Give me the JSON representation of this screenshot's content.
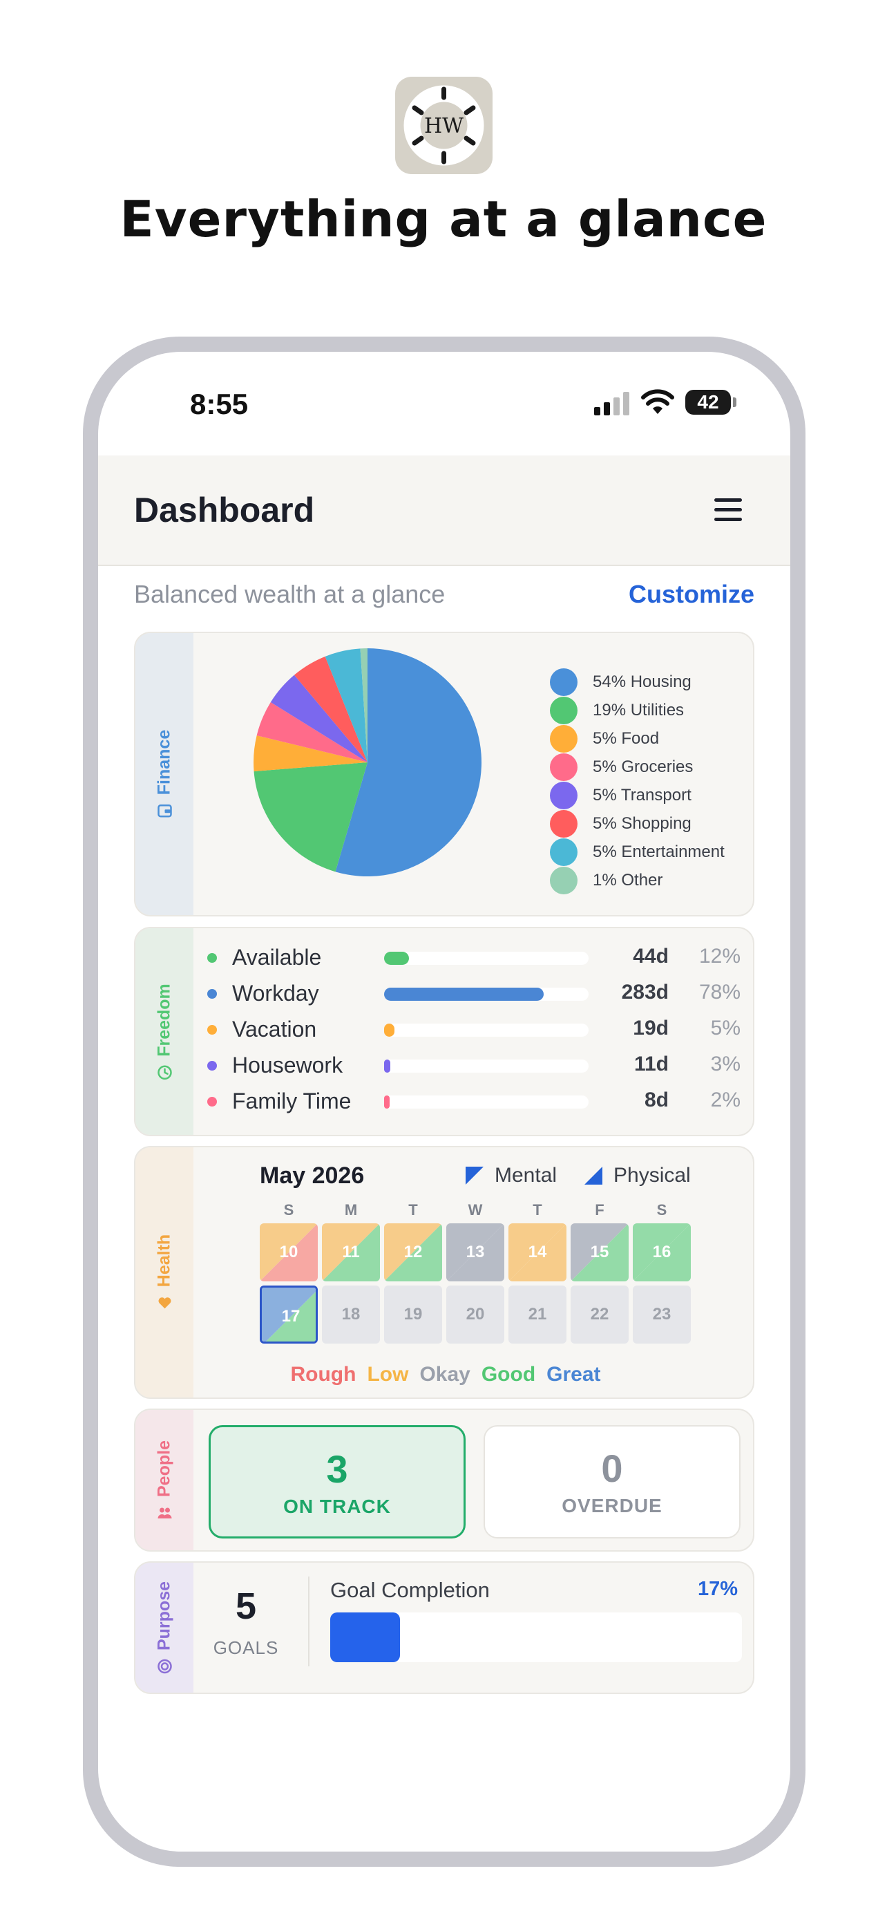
{
  "promo": {
    "headline": "Everything at a glance",
    "logo_text": "HW"
  },
  "status_bar": {
    "time": "8:55",
    "battery": "42"
  },
  "header": {
    "title": "Dashboard"
  },
  "intro": {
    "subtitle": "Balanced wealth at a glance",
    "customize_label": "Customize"
  },
  "finance": {
    "label": "Finance",
    "accent": "#4a90d9",
    "chart_data": {
      "type": "pie",
      "labels": [
        "Housing",
        "Utilities",
        "Food",
        "Groceries",
        "Transport",
        "Shopping",
        "Entertainment",
        "Other"
      ],
      "values": [
        54,
        19,
        5,
        5,
        5,
        5,
        5,
        1
      ],
      "colors": [
        "#4a90d9",
        "#52c773",
        "#ffae38",
        "#ff6b8a",
        "#7b68ee",
        "#ff5d5d",
        "#4bb8d6",
        "#96d0b3"
      ],
      "legend": [
        "54% Housing",
        "19% Utilities",
        "5% Food",
        "5% Groceries",
        "5% Transport",
        "5% Shopping",
        "5% Entertainment",
        "1% Other"
      ]
    }
  },
  "freedom": {
    "label": "Freedom",
    "accent": "#52c773",
    "rows": [
      {
        "label": "Available",
        "days": "44d",
        "pct": "12%",
        "value": 12,
        "color": "#52c773"
      },
      {
        "label": "Workday",
        "days": "283d",
        "pct": "78%",
        "value": 78,
        "color": "#4a86d4"
      },
      {
        "label": "Vacation",
        "days": "19d",
        "pct": "5%",
        "value": 5,
        "color": "#ffae38"
      },
      {
        "label": "Housework",
        "days": "11d",
        "pct": "3%",
        "value": 3,
        "color": "#7b68ee"
      },
      {
        "label": "Family Time",
        "days": "8d",
        "pct": "2%",
        "value": 2,
        "color": "#ff6b8a"
      }
    ]
  },
  "health": {
    "label": "Health",
    "accent": "#f3a640",
    "month": "May 2026",
    "legend_mental": "Mental",
    "legend_physical": "Physical",
    "weekdays": [
      "S",
      "M",
      "T",
      "W",
      "T",
      "F",
      "S"
    ],
    "week1": [
      "10",
      "11",
      "12",
      "13",
      "14",
      "15",
      "16"
    ],
    "week2": [
      "17",
      "18",
      "19",
      "20",
      "21",
      "22",
      "23"
    ],
    "mood_scale": [
      "Rough",
      "Low",
      "Okay",
      "Good",
      "Great"
    ],
    "mood_colors": [
      "#ef6f6f",
      "#f5b546",
      "#9aa0ab",
      "#52c773",
      "#4a86d4"
    ]
  },
  "people": {
    "label": "People",
    "accent": "#ef6f86",
    "on_track_count": "3",
    "on_track_label": "ON TRACK",
    "overdue_count": "0",
    "overdue_label": "OVERDUE"
  },
  "purpose": {
    "label": "Purpose",
    "accent": "#8b6fd6",
    "goals_count": "5",
    "goals_label": "GOALS",
    "completion_label": "Goal Completion",
    "completion_pct": "17%",
    "completion_value": 17
  }
}
